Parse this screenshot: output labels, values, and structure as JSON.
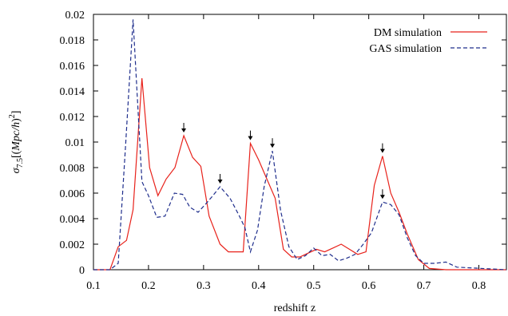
{
  "chart_data": {
    "type": "line",
    "xlabel": "redshift z",
    "ylabel": "σ7.5[(Mpc/h)²]",
    "ylabel_parts": {
      "sigma": "σ",
      "sub": "7.5",
      "open": "[(",
      "mpch": "Mpc/h",
      "close": ")",
      "sup": "2",
      "end": "]"
    },
    "xlim": [
      0.1,
      0.85
    ],
    "ylim": [
      0,
      0.02
    ],
    "x_ticks": [
      0.1,
      0.2,
      0.3,
      0.4,
      0.5,
      0.6,
      0.7,
      0.8
    ],
    "x_tick_labels": [
      "0.1",
      "0.2",
      "0.3",
      "0.4",
      "0.5",
      "0.6",
      "0.7",
      "0.8"
    ],
    "y_ticks": [
      0,
      0.002,
      0.004,
      0.006,
      0.008,
      0.01,
      0.012,
      0.014,
      0.016,
      0.018,
      0.02
    ],
    "y_tick_labels": [
      "0",
      "0.002",
      "0.004",
      "0.006",
      "0.008",
      "0.01",
      "0.012",
      "0.014",
      "0.016",
      "0.018",
      "0.02"
    ],
    "legend_position": "top-right",
    "grid": false,
    "series": [
      {
        "name": "DM simulation",
        "color": "#e8221b",
        "style": "solid",
        "x": [
          0.1,
          0.13,
          0.145,
          0.16,
          0.172,
          0.188,
          0.202,
          0.217,
          0.232,
          0.248,
          0.264,
          0.28,
          0.295,
          0.31,
          0.33,
          0.345,
          0.36,
          0.372,
          0.385,
          0.4,
          0.415,
          0.43,
          0.445,
          0.46,
          0.475,
          0.49,
          0.505,
          0.52,
          0.535,
          0.55,
          0.565,
          0.58,
          0.595,
          0.61,
          0.625,
          0.64,
          0.655,
          0.67,
          0.69,
          0.71,
          0.74,
          0.85
        ],
        "y": [
          0,
          0,
          0.0018,
          0.0023,
          0.0047,
          0.015,
          0.008,
          0.0058,
          0.0071,
          0.008,
          0.0105,
          0.0088,
          0.0081,
          0.0042,
          0.002,
          0.0014,
          0.0014,
          0.0014,
          0.0099,
          0.0086,
          0.0071,
          0.0056,
          0.0016,
          0.001,
          0.001,
          0.0013,
          0.0016,
          0.0014,
          0.0017,
          0.002,
          0.0016,
          0.0012,
          0.0014,
          0.0066,
          0.0089,
          0.006,
          0.0045,
          0.0028,
          0.0008,
          0.0001,
          0,
          0
        ]
      },
      {
        "name": "GAS simulation",
        "color": "#1f2e8c",
        "style": "dashed",
        "x": [
          0.1,
          0.13,
          0.145,
          0.158,
          0.172,
          0.188,
          0.2,
          0.215,
          0.23,
          0.247,
          0.262,
          0.275,
          0.29,
          0.305,
          0.315,
          0.33,
          0.348,
          0.365,
          0.375,
          0.385,
          0.398,
          0.41,
          0.425,
          0.44,
          0.455,
          0.47,
          0.485,
          0.5,
          0.515,
          0.53,
          0.545,
          0.56,
          0.575,
          0.59,
          0.605,
          0.625,
          0.64,
          0.655,
          0.67,
          0.685,
          0.7,
          0.72,
          0.74,
          0.76,
          0.85
        ],
        "y": [
          0,
          0,
          0.0005,
          0.0095,
          0.0196,
          0.0069,
          0.0058,
          0.0041,
          0.0042,
          0.006,
          0.0059,
          0.0049,
          0.0045,
          0.0052,
          0.0057,
          0.0065,
          0.0056,
          0.0042,
          0.0033,
          0.0014,
          0.0031,
          0.0065,
          0.0093,
          0.0046,
          0.0018,
          0.0008,
          0.0011,
          0.0017,
          0.0011,
          0.0012,
          0.0007,
          0.0009,
          0.0012,
          0.002,
          0.0029,
          0.0053,
          0.0051,
          0.0043,
          0.0025,
          0.0011,
          0.0005,
          0.0005,
          0.0006,
          0.0002,
          0
        ]
      }
    ],
    "annotations": [
      {
        "type": "arrow",
        "x": 0.264,
        "y": 0.0105
      },
      {
        "type": "arrow",
        "x": 0.33,
        "y": 0.0065
      },
      {
        "type": "arrow",
        "x": 0.385,
        "y": 0.0099
      },
      {
        "type": "arrow",
        "x": 0.425,
        "y": 0.0093
      },
      {
        "type": "arrow",
        "x": 0.625,
        "y": 0.0089
      },
      {
        "type": "arrow",
        "x": 0.625,
        "y": 0.0053
      }
    ]
  }
}
